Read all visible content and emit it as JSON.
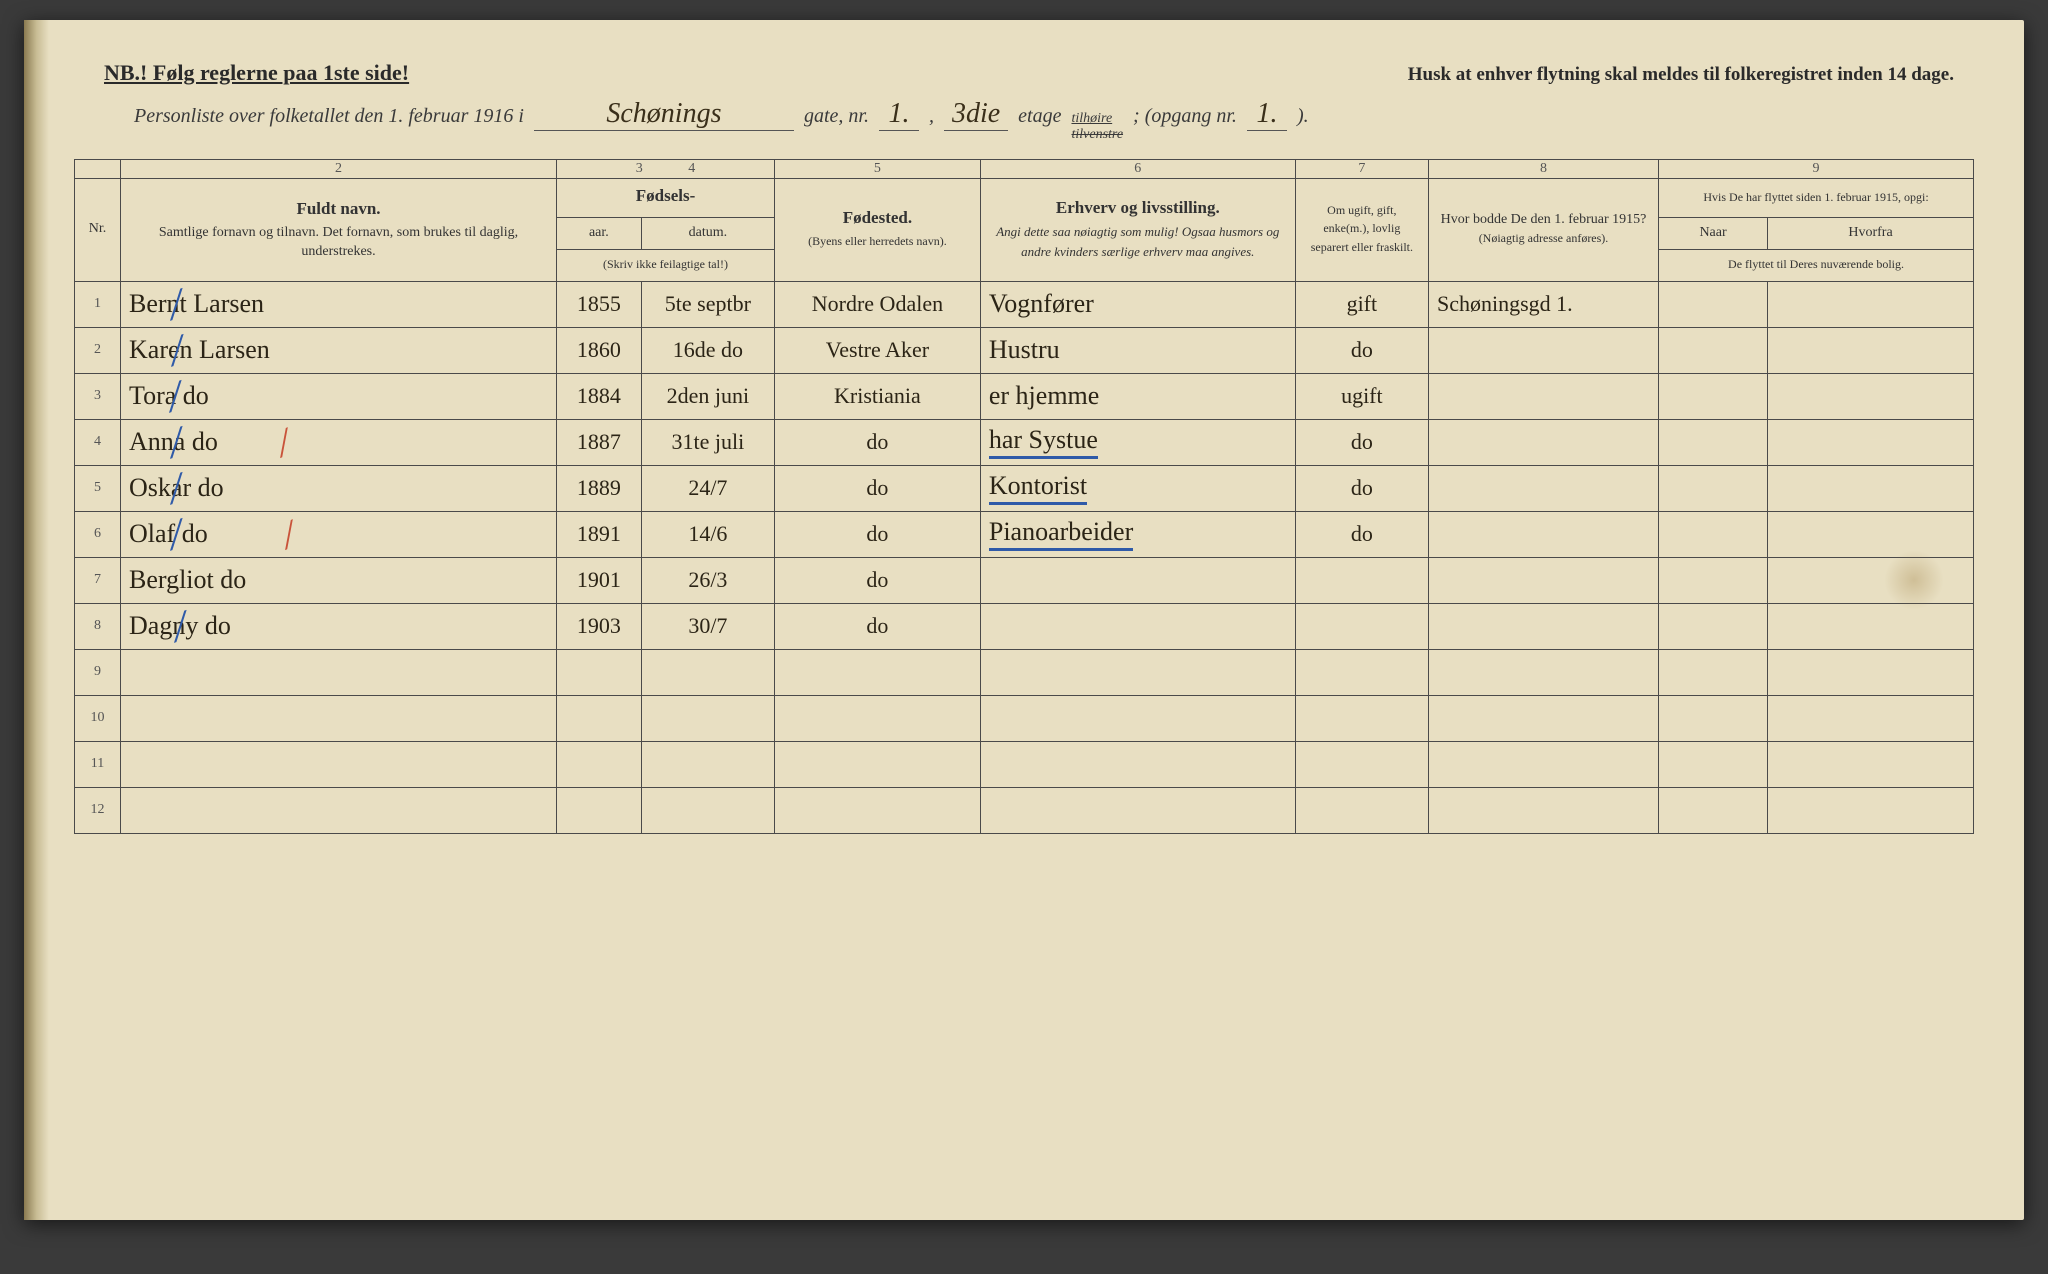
{
  "header": {
    "nb": "NB.! Følg reglerne paa 1ste side!",
    "reminder": "Husk at enhver flytning skal meldes til folkeregistret inden 14 dage.",
    "subtitle_prefix": "Personliste over folketallet den 1. februar 1916 i",
    "street": "Schønings",
    "gate_label": "gate, nr.",
    "gate_nr": "1.",
    "etage_val": "3die",
    "etage_label": "etage",
    "tilhoire": "tilhøire",
    "tilvenstre": "tilvenstre",
    "opgang_label": "; (opgang nr.",
    "opgang_nr": "1.",
    "opgang_close": ")."
  },
  "colnums": [
    "",
    "2",
    "3",
    "4",
    "5",
    "6",
    "7",
    "8",
    "9"
  ],
  "columns": {
    "nr": "Nr.",
    "name_title": "Fuldt navn.",
    "name_sub": "Samtlige fornavn og tilnavn. Det fornavn, som brukes til daglig, understrekes.",
    "fodsels": "Fødsels-",
    "aar": "aar.",
    "datum": "datum.",
    "fodsels_note": "(Skriv ikke feilagtige tal!)",
    "fodested": "Fødested.",
    "fodested_sub": "(Byens eller herredets navn).",
    "erhverv": "Erhverv og livsstilling.",
    "erhverv_sub": "Angi dette saa nøiagtig som mulig! Ogsaa husmors og andre kvinders særlige erhverv maa angives.",
    "ugift": "Om ugift, gift, enke(m.), lovlig separert eller fraskilt.",
    "bodde": "Hvor bodde De den 1. februar 1915?",
    "bodde_sub": "(Nøiagtig adresse anføres).",
    "flyttet": "Hvis De har flyttet siden 1. februar 1915, opgi:",
    "naar": "Naar",
    "hvorfra": "Hvorfra",
    "flyttet_sub": "De flyttet til Deres nuværende bolig."
  },
  "rows": [
    {
      "nr": "1",
      "name": "Bernt Larsen",
      "aar": "1855",
      "datum": "5te septbr",
      "fodested": "Nordre Odalen",
      "erhverv": "Vognfører",
      "ugift": "gift",
      "bodde": "Schøningsgd 1.",
      "underline": false,
      "blue": true,
      "red": false
    },
    {
      "nr": "2",
      "name": "Karen Larsen",
      "aar": "1860",
      "datum": "16de do",
      "fodested": "Vestre Aker",
      "erhverv": "Hustru",
      "ugift": "do",
      "bodde": "",
      "underline": false,
      "blue": true,
      "red": false
    },
    {
      "nr": "3",
      "name": "Tora       do",
      "aar": "1884",
      "datum": "2den juni",
      "fodested": "Kristiania",
      "erhverv": "er hjemme",
      "ugift": "ugift",
      "bodde": "",
      "underline": false,
      "blue": true,
      "red": false
    },
    {
      "nr": "4",
      "name": "Anna       do",
      "aar": "1887",
      "datum": "31te juli",
      "fodested": "do",
      "erhverv": "har Systue",
      "ugift": "do",
      "bodde": "",
      "underline": true,
      "blue": true,
      "red": true
    },
    {
      "nr": "5",
      "name": "Oskar      do",
      "aar": "1889",
      "datum": "24/7",
      "fodested": "do",
      "erhverv": "Kontorist",
      "ugift": "do",
      "bodde": "",
      "underline": true,
      "blue": true,
      "red": false
    },
    {
      "nr": "6",
      "name": "Olaf       do",
      "aar": "1891",
      "datum": "14/6",
      "fodested": "do",
      "erhverv": "Pianoarbeider",
      "ugift": "do",
      "bodde": "",
      "underline": true,
      "blue": true,
      "red": true
    },
    {
      "nr": "7",
      "name": "Bergliot   do",
      "aar": "1901",
      "datum": "26/3",
      "fodested": "do",
      "erhverv": "",
      "ugift": "",
      "bodde": "",
      "underline": false,
      "blue": false,
      "red": false
    },
    {
      "nr": "8",
      "name": "Dagny      do",
      "aar": "1903",
      "datum": "30/7",
      "fodested": "do",
      "erhverv": "",
      "ugift": "",
      "bodde": "",
      "underline": false,
      "blue": true,
      "red": false
    },
    {
      "nr": "9",
      "name": "",
      "aar": "",
      "datum": "",
      "fodested": "",
      "erhverv": "",
      "ugift": "",
      "bodde": "",
      "underline": false,
      "blue": false,
      "red": false
    },
    {
      "nr": "10",
      "name": "",
      "aar": "",
      "datum": "",
      "fodested": "",
      "erhverv": "",
      "ugift": "",
      "bodde": "",
      "underline": false,
      "blue": false,
      "red": false
    },
    {
      "nr": "11",
      "name": "",
      "aar": "",
      "datum": "",
      "fodested": "",
      "erhverv": "",
      "ugift": "",
      "bodde": "",
      "underline": false,
      "blue": false,
      "red": false
    },
    {
      "nr": "12",
      "name": "",
      "aar": "",
      "datum": "",
      "fodested": "",
      "erhverv": "",
      "ugift": "",
      "bodde": "",
      "underline": false,
      "blue": false,
      "red": false
    }
  ],
  "styling": {
    "page_bg": "#e8dfc2",
    "ink": "#2b2416",
    "rule": "#4a4a4a",
    "blue_pencil": "#2f5aa8",
    "red_pencil": "#c9533a",
    "font_print": "Georgia",
    "font_hand": "Brush Script MT"
  }
}
